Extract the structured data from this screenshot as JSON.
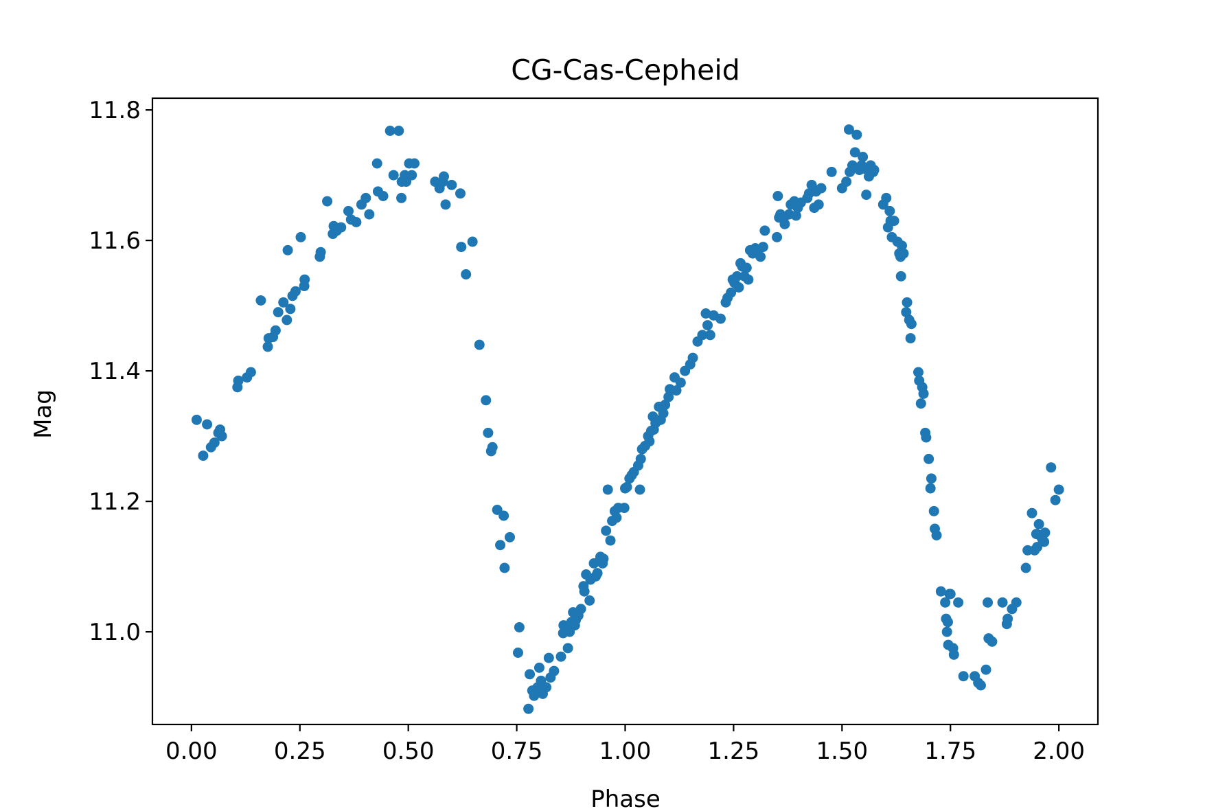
{
  "chart_data": {
    "type": "scatter",
    "title": "CG-Cas-Cepheid",
    "xlabel": "Phase",
    "ylabel": "Mag",
    "xlim": [
      -0.09,
      2.09
    ],
    "ylim": [
      11.818,
      10.858
    ],
    "y_inverted": true,
    "grid": false,
    "legend": "none",
    "xticks": [
      0.0,
      0.25,
      0.5,
      0.75,
      1.0,
      1.25,
      1.5,
      1.75,
      2.0
    ],
    "xtick_labels": [
      "0.00",
      "0.25",
      "0.50",
      "0.75",
      "1.00",
      "1.25",
      "1.50",
      "1.75",
      "2.00"
    ],
    "yticks": [
      11.0,
      11.2,
      11.4,
      11.6,
      11.8
    ],
    "ytick_labels": [
      "11.0",
      "11.2",
      "11.4",
      "11.6",
      "11.8"
    ],
    "marker_color": "#1f77b4",
    "series": [
      {
        "points": [
          [
            0.012,
            11.325
          ],
          [
            0.027,
            11.27
          ],
          [
            0.036,
            11.318
          ],
          [
            0.045,
            11.283
          ],
          [
            0.053,
            11.29
          ],
          [
            0.062,
            11.305
          ],
          [
            0.066,
            11.31
          ],
          [
            0.07,
            11.3
          ],
          [
            0.106,
            11.375
          ],
          [
            0.108,
            11.385
          ],
          [
            0.128,
            11.39
          ],
          [
            0.137,
            11.398
          ],
          [
            0.16,
            11.508
          ],
          [
            0.176,
            11.437
          ],
          [
            0.178,
            11.45
          ],
          [
            0.188,
            11.452
          ],
          [
            0.194,
            11.462
          ],
          [
            0.2,
            11.49
          ],
          [
            0.212,
            11.505
          ],
          [
            0.22,
            11.478
          ],
          [
            0.222,
            11.585
          ],
          [
            0.228,
            11.495
          ],
          [
            0.233,
            11.515
          ],
          [
            0.24,
            11.522
          ],
          [
            0.252,
            11.605
          ],
          [
            0.26,
            11.53
          ],
          [
            0.261,
            11.54
          ],
          [
            0.296,
            11.575
          ],
          [
            0.298,
            11.582
          ],
          [
            0.313,
            11.66
          ],
          [
            0.326,
            11.61
          ],
          [
            0.328,
            11.622
          ],
          [
            0.335,
            11.615
          ],
          [
            0.345,
            11.62
          ],
          [
            0.362,
            11.645
          ],
          [
            0.368,
            11.632
          ],
          [
            0.38,
            11.628
          ],
          [
            0.392,
            11.655
          ],
          [
            0.402,
            11.665
          ],
          [
            0.41,
            11.64
          ],
          [
            0.428,
            11.718
          ],
          [
            0.43,
            11.675
          ],
          [
            0.442,
            11.668
          ],
          [
            0.458,
            11.768
          ],
          [
            0.466,
            11.7
          ],
          [
            0.478,
            11.768
          ],
          [
            0.484,
            11.665
          ],
          [
            0.485,
            11.69
          ],
          [
            0.492,
            11.7
          ],
          [
            0.495,
            11.69
          ],
          [
            0.502,
            11.718
          ],
          [
            0.508,
            11.7
          ],
          [
            0.514,
            11.718
          ],
          [
            0.562,
            11.69
          ],
          [
            0.572,
            11.68
          ],
          [
            0.58,
            11.69
          ],
          [
            0.582,
            11.698
          ],
          [
            0.586,
            11.655
          ],
          [
            0.6,
            11.685
          ],
          [
            0.62,
            11.672
          ],
          [
            0.622,
            11.59
          ],
          [
            0.633,
            11.548
          ],
          [
            0.648,
            11.598
          ],
          [
            0.664,
            11.44
          ],
          [
            0.679,
            11.355
          ],
          [
            0.684,
            11.305
          ],
          [
            0.691,
            11.277
          ],
          [
            0.694,
            11.283
          ],
          [
            0.705,
            11.187
          ],
          [
            0.712,
            11.133
          ],
          [
            0.72,
            11.178
          ],
          [
            0.722,
            11.098
          ],
          [
            0.734,
            11.145
          ],
          [
            0.753,
            10.968
          ],
          [
            0.756,
            11.007
          ],
          [
            0.777,
            10.882
          ],
          [
            0.78,
            10.935
          ],
          [
            0.786,
            10.91
          ],
          [
            0.79,
            10.902
          ],
          [
            0.798,
            10.915
          ],
          [
            0.802,
            10.945
          ],
          [
            0.806,
            10.925
          ],
          [
            0.81,
            10.905
          ],
          [
            0.818,
            10.915
          ],
          [
            0.824,
            10.96
          ],
          [
            0.828,
            10.93
          ],
          [
            0.836,
            10.94
          ],
          [
            0.852,
            10.962
          ],
          [
            0.857,
            10.998
          ],
          [
            0.858,
            11.01
          ],
          [
            0.864,
            11.006
          ],
          [
            0.868,
            10.975
          ],
          [
            0.872,
            11.0
          ],
          [
            0.876,
            11.015
          ],
          [
            0.88,
            11.03
          ],
          [
            0.884,
            11.01
          ],
          [
            0.886,
            11.018
          ],
          [
            0.892,
            11.025
          ],
          [
            0.898,
            11.035
          ],
          [
            0.904,
            11.07
          ],
          [
            0.906,
            11.062
          ],
          [
            0.91,
            11.088
          ],
          [
            0.918,
            11.048
          ],
          [
            0.92,
            11.08
          ],
          [
            0.928,
            11.105
          ],
          [
            0.932,
            11.085
          ],
          [
            0.936,
            11.09
          ],
          [
            0.943,
            11.115
          ],
          [
            0.948,
            11.105
          ],
          [
            0.95,
            11.112
          ],
          [
            0.956,
            11.155
          ],
          [
            0.96,
            11.218
          ],
          [
            0.966,
            11.14
          ],
          [
            0.97,
            11.17
          ],
          [
            0.976,
            11.185
          ],
          [
            0.98,
            11.175
          ],
          [
            0.984,
            11.19
          ],
          [
            0.998,
            11.19
          ],
          [
            1.0,
            11.22
          ],
          [
            1.004,
            11.222
          ],
          [
            1.01,
            11.235
          ],
          [
            1.015,
            11.24
          ],
          [
            1.02,
            11.245
          ],
          [
            1.03,
            11.255
          ],
          [
            1.034,
            11.218
          ],
          [
            1.036,
            11.265
          ],
          [
            1.039,
            11.28
          ],
          [
            1.046,
            11.285
          ],
          [
            1.053,
            11.3
          ],
          [
            1.056,
            11.292
          ],
          [
            1.06,
            11.308
          ],
          [
            1.064,
            11.33
          ],
          [
            1.066,
            11.31
          ],
          [
            1.07,
            11.32
          ],
          [
            1.078,
            11.345
          ],
          [
            1.082,
            11.325
          ],
          [
            1.088,
            11.335
          ],
          [
            1.092,
            11.348
          ],
          [
            1.1,
            11.36
          ],
          [
            1.103,
            11.372
          ],
          [
            1.114,
            11.39
          ],
          [
            1.118,
            11.37
          ],
          [
            1.128,
            11.382
          ],
          [
            1.138,
            11.4
          ],
          [
            1.15,
            11.41
          ],
          [
            1.156,
            11.42
          ],
          [
            1.167,
            11.445
          ],
          [
            1.178,
            11.455
          ],
          [
            1.186,
            11.488
          ],
          [
            1.19,
            11.47
          ],
          [
            1.196,
            11.455
          ],
          [
            1.204,
            11.485
          ],
          [
            1.22,
            11.48
          ],
          [
            1.232,
            11.505
          ],
          [
            1.236,
            11.512
          ],
          [
            1.244,
            11.52
          ],
          [
            1.248,
            11.54
          ],
          [
            1.252,
            11.535
          ],
          [
            1.258,
            11.545
          ],
          [
            1.262,
            11.528
          ],
          [
            1.266,
            11.565
          ],
          [
            1.27,
            11.56
          ],
          [
            1.275,
            11.545
          ],
          [
            1.28,
            11.558
          ],
          [
            1.284,
            11.54
          ],
          [
            1.288,
            11.585
          ],
          [
            1.294,
            11.58
          ],
          [
            1.3,
            11.588
          ],
          [
            1.306,
            11.585
          ],
          [
            1.312,
            11.575
          ],
          [
            1.318,
            11.59
          ],
          [
            1.322,
            11.615
          ],
          [
            1.35,
            11.605
          ],
          [
            1.352,
            11.668
          ],
          [
            1.355,
            11.635
          ],
          [
            1.358,
            11.64
          ],
          [
            1.366,
            11.635
          ],
          [
            1.368,
            11.625
          ],
          [
            1.378,
            11.64
          ],
          [
            1.382,
            11.655
          ],
          [
            1.39,
            11.66
          ],
          [
            1.394,
            11.638
          ],
          [
            1.398,
            11.65
          ],
          [
            1.405,
            11.658
          ],
          [
            1.42,
            11.665
          ],
          [
            1.424,
            11.672
          ],
          [
            1.43,
            11.685
          ],
          [
            1.436,
            11.65
          ],
          [
            1.44,
            11.675
          ],
          [
            1.446,
            11.655
          ],
          [
            1.452,
            11.68
          ],
          [
            1.476,
            11.705
          ],
          [
            1.5,
            11.68
          ],
          [
            1.51,
            11.69
          ],
          [
            1.516,
            11.77
          ],
          [
            1.518,
            11.705
          ],
          [
            1.524,
            11.715
          ],
          [
            1.53,
            11.735
          ],
          [
            1.534,
            11.762
          ],
          [
            1.54,
            11.708
          ],
          [
            1.545,
            11.715
          ],
          [
            1.548,
            11.728
          ],
          [
            1.552,
            11.71
          ],
          [
            1.556,
            11.67
          ],
          [
            1.562,
            11.698
          ],
          [
            1.566,
            11.715
          ],
          [
            1.572,
            11.705
          ],
          [
            1.574,
            11.708
          ],
          [
            1.595,
            11.655
          ],
          [
            1.602,
            11.665
          ],
          [
            1.606,
            11.62
          ],
          [
            1.61,
            11.645
          ],
          [
            1.612,
            11.63
          ],
          [
            1.615,
            11.605
          ],
          [
            1.62,
            11.63
          ],
          [
            1.628,
            11.598
          ],
          [
            1.632,
            11.58
          ],
          [
            1.635,
            11.575
          ],
          [
            1.636,
            11.545
          ],
          [
            1.638,
            11.592
          ],
          [
            1.642,
            11.58
          ],
          [
            1.648,
            11.49
          ],
          [
            1.65,
            11.505
          ],
          [
            1.655,
            11.478
          ],
          [
            1.658,
            11.45
          ],
          [
            1.66,
            11.472
          ],
          [
            1.676,
            11.398
          ],
          [
            1.678,
            11.385
          ],
          [
            1.682,
            11.35
          ],
          [
            1.685,
            11.375
          ],
          [
            1.688,
            11.365
          ],
          [
            1.692,
            11.305
          ],
          [
            1.694,
            11.298
          ],
          [
            1.7,
            11.265
          ],
          [
            1.704,
            11.22
          ],
          [
            1.706,
            11.235
          ],
          [
            1.712,
            11.185
          ],
          [
            1.714,
            11.158
          ],
          [
            1.718,
            11.148
          ],
          [
            1.728,
            11.062
          ],
          [
            1.738,
            11.045
          ],
          [
            1.74,
            11.02
          ],
          [
            1.742,
            11.0
          ],
          [
            1.744,
            11.015
          ],
          [
            1.745,
            10.98
          ],
          [
            1.748,
            11.058
          ],
          [
            1.75,
            11.058
          ],
          [
            1.756,
            10.975
          ],
          [
            1.758,
            10.965
          ],
          [
            1.768,
            11.045
          ],
          [
            1.78,
            10.932
          ],
          [
            1.806,
            10.932
          ],
          [
            1.814,
            10.922
          ],
          [
            1.82,
            10.918
          ],
          [
            1.832,
            10.942
          ],
          [
            1.836,
            11.045
          ],
          [
            1.838,
            10.99
          ],
          [
            1.846,
            10.985
          ],
          [
            1.87,
            11.045
          ],
          [
            1.88,
            11.012
          ],
          [
            1.882,
            11.02
          ],
          [
            1.892,
            11.035
          ],
          [
            1.902,
            11.045
          ],
          [
            1.924,
            11.098
          ],
          [
            1.928,
            11.125
          ],
          [
            1.938,
            11.182
          ],
          [
            1.944,
            11.125
          ],
          [
            1.948,
            11.15
          ],
          [
            1.95,
            11.13
          ],
          [
            1.954,
            11.165
          ],
          [
            1.956,
            11.148
          ],
          [
            1.962,
            11.142
          ],
          [
            1.966,
            11.138
          ],
          [
            1.968,
            11.152
          ],
          [
            1.982,
            11.252
          ],
          [
            1.992,
            11.202
          ],
          [
            2.0,
            11.218
          ]
        ]
      }
    ]
  }
}
